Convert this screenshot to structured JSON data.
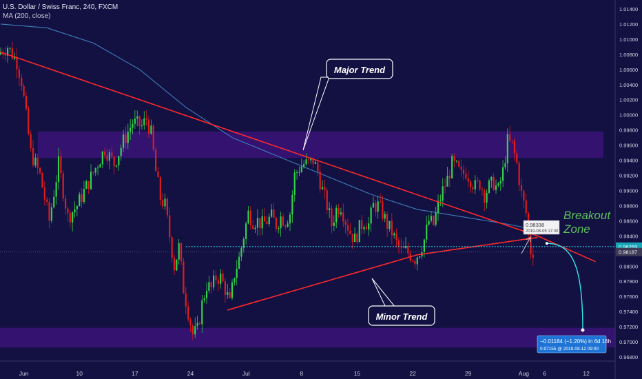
{
  "header": {
    "title": "U.S. Dollar / Swiss Franc, 240, FXCM",
    "indicator": "MA (200, close)"
  },
  "colors": {
    "background": "#131042",
    "zone": "#3b1378",
    "bull": "#33d24a",
    "bear": "#e01c1c",
    "ma": "#3f7fb8",
    "trend": "#ff2a2a",
    "projection": "#2ee8ef",
    "projection_label_bg": "#1e74d6"
  },
  "annotations": {
    "major_trend": "Major Trend",
    "minor_trend": "Minor Trend",
    "breakout_line1": "Breakout",
    "breakout_line2": "Zone",
    "tooltip_value": "0.98338",
    "tooltip_date": "2019-08-05 17:00",
    "projection_line1": "−0.01184 (−1.20%) in 6d 16h",
    "projection_line2": "0.97155  @ 2019-08-12  09:00"
  },
  "price_labels": {
    "dotted_level": "0.98259",
    "last_price": "0.98187"
  },
  "chart_data": {
    "type": "candlestick",
    "title": "U.S. Dollar / Swiss Franc, 240, FXCM",
    "ylim": [
      0.9676,
      1.0155
    ],
    "yticks": [
      "1.01400",
      "1.01200",
      "1.01000",
      "1.00800",
      "1.00600",
      "1.00400",
      "1.00200",
      "1.00000",
      "0.99800",
      "0.99600",
      "0.99400",
      "0.99200",
      "0.99000",
      "0.98800",
      "0.98600",
      "0.98400",
      "0.98200",
      "0.98000",
      "0.97800",
      "0.97600",
      "0.97400",
      "0.97200",
      "0.97000",
      "0.96800"
    ],
    "xticks": [
      {
        "label": "Jun",
        "index": 10
      },
      {
        "label": "10",
        "index": 34
      },
      {
        "label": "17",
        "index": 58
      },
      {
        "label": "24",
        "index": 82
      },
      {
        "label": "Jul",
        "index": 106
      },
      {
        "label": "8",
        "index": 130
      },
      {
        "label": "15",
        "index": 154
      },
      {
        "label": "22",
        "index": 178
      },
      {
        "label": "29",
        "index": 202
      },
      {
        "label": "Aug",
        "index": 226
      },
      {
        "label": "6",
        "index": 235
      },
      {
        "label": "12",
        "index": 253
      }
    ],
    "anchors": [
      [
        0,
        1.008
      ],
      [
        4,
        1.009
      ],
      [
        8,
        1.007
      ],
      [
        10,
        1.0045
      ],
      [
        14,
        0.995
      ],
      [
        18,
        0.992
      ],
      [
        22,
        0.986
      ],
      [
        26,
        0.9935
      ],
      [
        30,
        0.9865
      ],
      [
        34,
        0.988
      ],
      [
        38,
        0.9905
      ],
      [
        42,
        0.993
      ],
      [
        46,
        0.9955
      ],
      [
        50,
        0.9935
      ],
      [
        54,
        0.9965
      ],
      [
        58,
        0.999
      ],
      [
        62,
        0.9985
      ],
      [
        64,
        0.9995
      ],
      [
        66,
        0.9975
      ],
      [
        68,
        0.9925
      ],
      [
        70,
        0.989
      ],
      [
        72,
        0.988
      ],
      [
        74,
        0.984
      ],
      [
        76,
        0.98
      ],
      [
        78,
        0.9825
      ],
      [
        80,
        0.977
      ],
      [
        82,
        0.974
      ],
      [
        84,
        0.971
      ],
      [
        86,
        0.9715
      ],
      [
        88,
        0.975
      ],
      [
        90,
        0.9775
      ],
      [
        92,
        0.977
      ],
      [
        94,
        0.9785
      ],
      [
        96,
        0.9785
      ],
      [
        98,
        0.977
      ],
      [
        100,
        0.975
      ],
      [
        102,
        0.979
      ],
      [
        104,
        0.981
      ],
      [
        106,
        0.984
      ],
      [
        108,
        0.987
      ],
      [
        110,
        0.986
      ],
      [
        112,
        0.986
      ],
      [
        114,
        0.9855
      ],
      [
        116,
        0.986
      ],
      [
        118,
        0.9865
      ],
      [
        120,
        0.9855
      ],
      [
        122,
        0.9865
      ],
      [
        124,
        0.986
      ],
      [
        126,
        0.987
      ],
      [
        128,
        0.992
      ],
      [
        130,
        0.993
      ],
      [
        132,
        0.9935
      ],
      [
        134,
        0.9935
      ],
      [
        136,
        0.994
      ],
      [
        138,
        0.9925
      ],
      [
        140,
        0.99
      ],
      [
        142,
        0.988
      ],
      [
        144,
        0.9855
      ],
      [
        146,
        0.9875
      ],
      [
        148,
        0.988
      ],
      [
        150,
        0.986
      ],
      [
        152,
        0.9845
      ],
      [
        154,
        0.9835
      ],
      [
        156,
        0.985
      ],
      [
        158,
        0.986
      ],
      [
        160,
        0.9855
      ],
      [
        162,
        0.988
      ],
      [
        164,
        0.988
      ],
      [
        166,
        0.987
      ],
      [
        168,
        0.9855
      ],
      [
        170,
        0.9845
      ],
      [
        172,
        0.983
      ],
      [
        174,
        0.982
      ],
      [
        176,
        0.982
      ],
      [
        178,
        0.9815
      ],
      [
        180,
        0.981
      ],
      [
        182,
        0.982
      ],
      [
        184,
        0.9835
      ],
      [
        186,
        0.986
      ],
      [
        188,
        0.9855
      ],
      [
        190,
        0.988
      ],
      [
        192,
        0.99
      ],
      [
        194,
        0.9915
      ],
      [
        196,
        0.9935
      ],
      [
        198,
        0.993
      ],
      [
        200,
        0.992
      ],
      [
        202,
        0.9925
      ],
      [
        204,
        0.9915
      ],
      [
        206,
        0.9905
      ],
      [
        208,
        0.991
      ],
      [
        210,
        0.9895
      ],
      [
        212,
        0.9905
      ],
      [
        214,
        0.991
      ],
      [
        216,
        0.99
      ],
      [
        218,
        0.9925
      ],
      [
        220,
        0.9965
      ],
      [
        222,
        0.996
      ],
      [
        224,
        0.9935
      ],
      [
        226,
        0.9895
      ],
      [
        228,
        0.987
      ],
      [
        229,
        0.984
      ],
      [
        230,
        0.982
      ]
    ],
    "ma_200": [
      [
        0,
        1.012
      ],
      [
        20,
        1.0115
      ],
      [
        40,
        1.0095
      ],
      [
        60,
        1.006
      ],
      [
        80,
        1.001
      ],
      [
        100,
        0.997
      ],
      [
        120,
        0.9945
      ],
      [
        140,
        0.992
      ],
      [
        160,
        0.9895
      ],
      [
        180,
        0.9875
      ],
      [
        200,
        0.9865
      ],
      [
        220,
        0.9855
      ],
      [
        231,
        0.9848
      ]
    ],
    "major_trend": [
      [
        -2,
        1.0085
      ],
      [
        232,
        0.984
      ],
      [
        257,
        0.9806
      ]
    ],
    "minor_trend": [
      [
        98,
        0.9742
      ],
      [
        180,
        0.9815
      ],
      [
        232,
        0.9838
      ]
    ],
    "upper_zone": [
      0.9978,
      0.9943
    ],
    "lower_zone": [
      0.97185,
      0.96925
    ],
    "dotted_level": 0.98259,
    "last_price": 0.98187,
    "projection": {
      "from": [
        233,
        0.98338
      ],
      "to": [
        250,
        0.97155
      ]
    }
  }
}
